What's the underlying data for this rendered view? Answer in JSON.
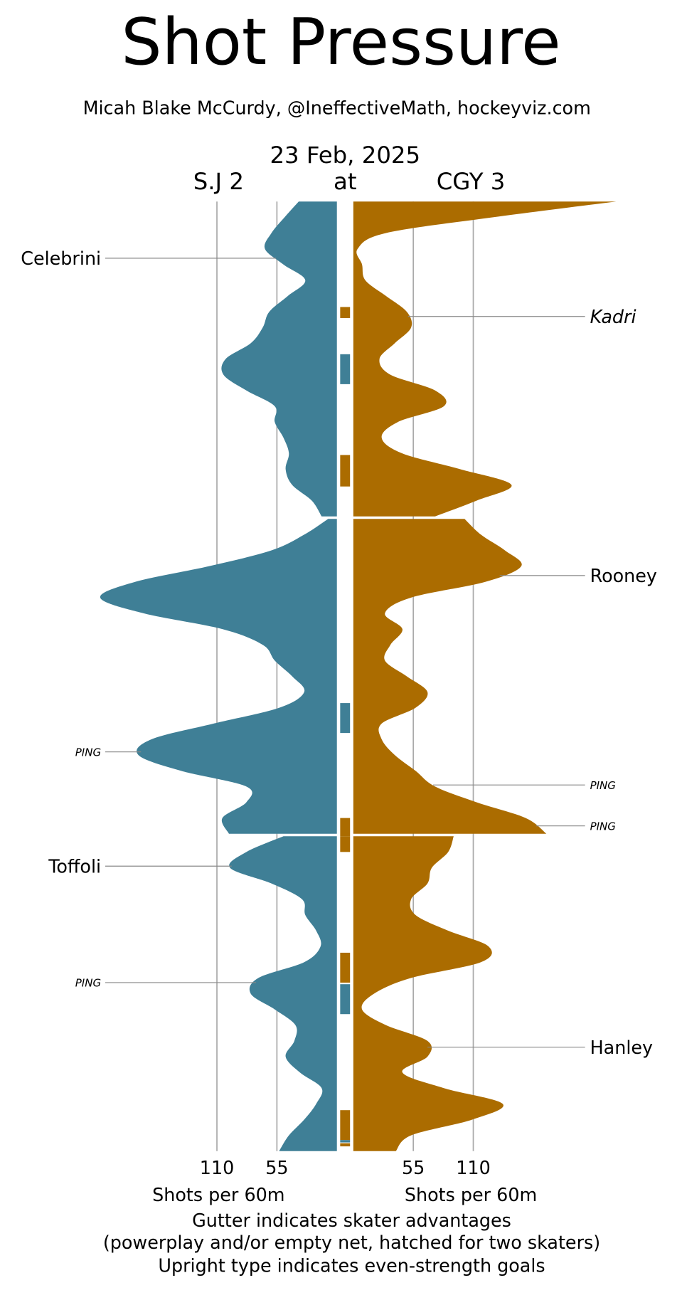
{
  "chart_data": {
    "type": "shot-pressure",
    "title": "Shot Pressure",
    "subtitle": "Micah Blake McCurdy, @IneffectiveMath, hockeyviz.com",
    "date": "23 Feb, 2025",
    "away": "S.J 2",
    "at": "at",
    "home": "CGY 3",
    "xlabel": "Shots per 60m",
    "footer": [
      "Gutter indicates skater advantages",
      "(powerplay and/or empty net, hatched for two skaters)",
      "Upright type indicates even-strength goals"
    ],
    "xlim": [
      0,
      241
    ],
    "xticks": [
      55,
      110
    ],
    "grid": true,
    "x": [
      0,
      1,
      2,
      3,
      4,
      5,
      6,
      7,
      8,
      9,
      10,
      11,
      12,
      13,
      14,
      15,
      16,
      17,
      18,
      19,
      20
    ],
    "series": [
      {
        "name": "S.J",
        "color": "#3f7f96",
        "side": "left",
        "values": [
          [
            35,
            48,
            60,
            66,
            49,
            29,
            45,
            62,
            68,
            79,
            102,
            104,
            83,
            57,
            57,
            49,
            44,
            47,
            41,
            23,
            14
          ],
          [
            8,
            30,
            60,
            117,
            185,
            217,
            177,
            105,
            68,
            57,
            41,
            30,
            53,
            113,
            170,
            182,
            143,
            83,
            83,
            105,
            99
          ],
          [
            49,
            83,
            98,
            60,
            32,
            29,
            19,
            15,
            30,
            72,
            79,
            57,
            38,
            39,
            47,
            34,
            14,
            19,
            30,
            44,
            53
          ]
        ]
      },
      {
        "name": "CGY",
        "color": "#ab6c00",
        "side": "right",
        "values": [
          [
            241,
            128,
            30,
            4,
            8,
            11,
            30,
            49,
            53,
            38,
            24,
            34,
            75,
            83,
            41,
            26,
            45,
            98,
            145,
            113,
            75
          ],
          [
            102,
            117,
            139,
            154,
            121,
            53,
            29,
            45,
            34,
            29,
            49,
            68,
            57,
            26,
            26,
            38,
            57,
            75,
            113,
            158,
            177
          ],
          [
            92,
            87,
            72,
            68,
            53,
            57,
            87,
            124,
            117,
            53,
            19,
            8,
            30,
            68,
            68,
            45,
            83,
            137,
            109,
            53,
            39
          ]
        ]
      }
    ],
    "advantages": [
      {
        "team": 1,
        "start": 6.7,
        "end": 7.4
      },
      {
        "team": 0,
        "start": 9.7,
        "end": 11.6
      },
      {
        "team": 1,
        "start": 16.1,
        "end": 18.1
      },
      {
        "team": 0,
        "start": 31.7,
        "end": 33.6
      },
      {
        "team": 1,
        "start": 39.0,
        "end": 40.0
      },
      {
        "team": 1,
        "start": 40.0,
        "end": 41.0
      },
      {
        "team": 1,
        "start": 47.4,
        "end": 49.3
      },
      {
        "team": 0,
        "start": 49.4,
        "end": 51.3
      },
      {
        "team": 1,
        "start": 57.4,
        "end": 59.3
      },
      {
        "team": 0,
        "start": 59.3,
        "end": 59.45
      },
      {
        "team": 1,
        "start": 59.5,
        "end": 59.7
      }
    ],
    "events": [
      {
        "label": "Celebrini",
        "team": 0,
        "time": 3.6,
        "italic": false,
        "minor": false
      },
      {
        "label": "Kadri",
        "team": 1,
        "time": 7.3,
        "italic": true,
        "minor": false
      },
      {
        "label": "Rooney",
        "team": 1,
        "time": 23.6,
        "italic": false,
        "minor": false
      },
      {
        "label": "PING",
        "team": 0,
        "time": 34.8,
        "italic": true,
        "minor": true
      },
      {
        "label": "PING",
        "team": 1,
        "time": 36.9,
        "italic": true,
        "minor": true
      },
      {
        "label": "PING",
        "team": 1,
        "time": 39.5,
        "italic": true,
        "minor": true
      },
      {
        "label": "Toffoli",
        "team": 0,
        "time": 41.9,
        "italic": false,
        "minor": false
      },
      {
        "label": "PING",
        "team": 0,
        "time": 49.3,
        "italic": true,
        "minor": true
      },
      {
        "label": "Hanley",
        "team": 1,
        "time": 53.4,
        "italic": false,
        "minor": false
      }
    ]
  }
}
